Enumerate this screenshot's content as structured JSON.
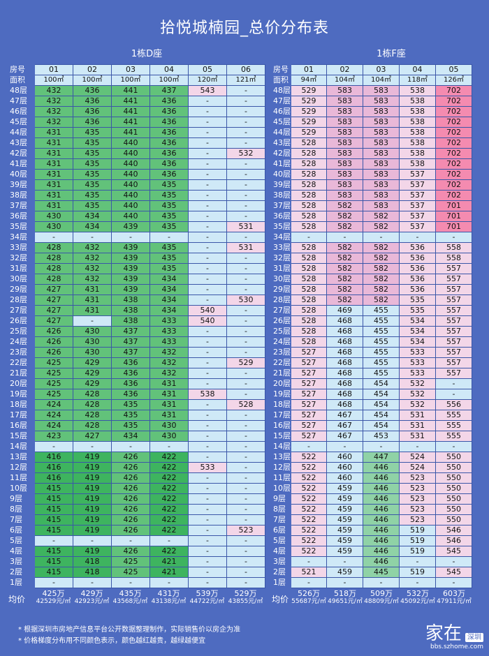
{
  "title": "拾悦城楠园_总价分布表",
  "labels": {
    "room": "房号",
    "area": "面积",
    "avg": "均价"
  },
  "colors": {
    "background": "#4e6bc0",
    "empty": "#cfe9f7",
    "green": "#3eb45f",
    "pink": "#f3d6e8",
    "hot_pink": "#f48bb0"
  },
  "footnotes": [
    "* 根据深圳市房地产信息平台公开数据整理制作，实际销售价以房企为准",
    "* 价格梯度分布用不同颜色表示，颜色越红越贵，越绿越便宜"
  ],
  "watermark": {
    "main": "家在",
    "tag": "深圳",
    "url": "bbs.szhome.com"
  },
  "floors": [
    "48层",
    "47层",
    "46层",
    "45层",
    "44层",
    "43层",
    "42层",
    "41层",
    "40层",
    "39层",
    "38层",
    "37层",
    "36层",
    "35层",
    "34层",
    "33层",
    "32层",
    "31层",
    "30层",
    "29层",
    "28层",
    "27层",
    "26层",
    "25层",
    "24层",
    "23层",
    "22层",
    "21层",
    "20层",
    "19层",
    "18层",
    "17层",
    "16层",
    "15层",
    "14层",
    "13层",
    "12层",
    "11层",
    "10层",
    "9层",
    "8层",
    "7层",
    "6层",
    "5层",
    "4层",
    "3层",
    "2层",
    "1层"
  ],
  "buildings": [
    {
      "name": "1栋D座",
      "units": [
        "01",
        "02",
        "03",
        "04",
        "05",
        "06"
      ],
      "areas": [
        "100㎡",
        "100㎡",
        "100㎡",
        "100㎡",
        "120㎡",
        "121㎡"
      ],
      "averages": [
        {
          "total": "425万",
          "unit": "42529元/㎡"
        },
        {
          "total": "429万",
          "unit": "42923元/㎡"
        },
        {
          "total": "435万",
          "unit": "43568元/㎡"
        },
        {
          "total": "431万",
          "unit": "43138元/㎡"
        },
        {
          "total": "539万",
          "unit": "44722元/㎡"
        },
        {
          "total": "529万",
          "unit": "43855元/㎡"
        }
      ],
      "rows": [
        [
          "432",
          "436",
          "441",
          "437",
          "543",
          "-"
        ],
        [
          "432",
          "436",
          "441",
          "436",
          "-",
          "-"
        ],
        [
          "432",
          "436",
          "441",
          "436",
          "-",
          "-"
        ],
        [
          "432",
          "436",
          "441",
          "436",
          "-",
          "-"
        ],
        [
          "431",
          "435",
          "441",
          "436",
          "-",
          "-"
        ],
        [
          "431",
          "435",
          "440",
          "436",
          "-",
          "-"
        ],
        [
          "431",
          "435",
          "440",
          "436",
          "-",
          "532"
        ],
        [
          "431",
          "435",
          "440",
          "436",
          "-",
          "-"
        ],
        [
          "431",
          "435",
          "440",
          "436",
          "-",
          "-"
        ],
        [
          "431",
          "435",
          "440",
          "435",
          "-",
          "-"
        ],
        [
          "431",
          "435",
          "440",
          "435",
          "-",
          "-"
        ],
        [
          "431",
          "435",
          "440",
          "435",
          "-",
          "-"
        ],
        [
          "430",
          "434",
          "440",
          "435",
          "-",
          "-"
        ],
        [
          "430",
          "434",
          "439",
          "435",
          "-",
          "531"
        ],
        [
          "-",
          "-",
          "-",
          "-",
          "-",
          "-"
        ],
        [
          "428",
          "432",
          "439",
          "435",
          "-",
          "531"
        ],
        [
          "428",
          "432",
          "439",
          "435",
          "-",
          "-"
        ],
        [
          "428",
          "432",
          "439",
          "435",
          "-",
          "-"
        ],
        [
          "428",
          "432",
          "439",
          "434",
          "-",
          "-"
        ],
        [
          "427",
          "431",
          "439",
          "434",
          "-",
          "-"
        ],
        [
          "427",
          "431",
          "438",
          "434",
          "-",
          "530"
        ],
        [
          "427",
          "431",
          "438",
          "434",
          "540",
          "-"
        ],
        [
          "427",
          "-",
          "438",
          "433",
          "540",
          "-"
        ],
        [
          "426",
          "430",
          "437",
          "433",
          "-",
          "-"
        ],
        [
          "426",
          "430",
          "437",
          "433",
          "-",
          "-"
        ],
        [
          "426",
          "430",
          "437",
          "432",
          "-",
          "-"
        ],
        [
          "425",
          "429",
          "436",
          "432",
          "-",
          "529"
        ],
        [
          "425",
          "429",
          "436",
          "432",
          "-",
          "-"
        ],
        [
          "425",
          "429",
          "436",
          "431",
          "-",
          "-"
        ],
        [
          "425",
          "428",
          "436",
          "431",
          "538",
          "-"
        ],
        [
          "424",
          "428",
          "435",
          "431",
          "-",
          "528"
        ],
        [
          "424",
          "428",
          "435",
          "431",
          "-",
          "-"
        ],
        [
          "424",
          "428",
          "435",
          "430",
          "-",
          "-"
        ],
        [
          "423",
          "427",
          "434",
          "430",
          "-",
          "-"
        ],
        [
          "-",
          "-",
          "-",
          "-",
          "-",
          "-"
        ],
        [
          "416",
          "419",
          "426",
          "422",
          "-",
          "-"
        ],
        [
          "416",
          "419",
          "426",
          "422",
          "533",
          "-"
        ],
        [
          "416",
          "419",
          "426",
          "422",
          "-",
          "-"
        ],
        [
          "415",
          "419",
          "426",
          "422",
          "-",
          "-"
        ],
        [
          "415",
          "419",
          "426",
          "422",
          "-",
          "-"
        ],
        [
          "415",
          "419",
          "426",
          "422",
          "-",
          "-"
        ],
        [
          "415",
          "419",
          "426",
          "422",
          "-",
          "-"
        ],
        [
          "415",
          "419",
          "426",
          "422",
          "-",
          "523"
        ],
        [
          "-",
          "-",
          "-",
          "-",
          "-",
          "-"
        ],
        [
          "415",
          "419",
          "426",
          "422",
          "-",
          "-"
        ],
        [
          "415",
          "418",
          "425",
          "421",
          "-",
          "-"
        ],
        [
          "415",
          "418",
          "425",
          "421",
          "-",
          "-"
        ],
        [
          "-",
          "-",
          "-",
          "-",
          "-",
          "-"
        ]
      ]
    },
    {
      "name": "1栋F座",
      "units": [
        "01",
        "02",
        "03",
        "04",
        "05"
      ],
      "areas": [
        "94㎡",
        "104㎡",
        "104㎡",
        "118㎡",
        "126㎡"
      ],
      "averages": [
        {
          "total": "526万",
          "unit": "55687元/㎡"
        },
        {
          "total": "518万",
          "unit": "49651元/㎡"
        },
        {
          "total": "509万",
          "unit": "48809元/㎡"
        },
        {
          "total": "532万",
          "unit": "45092元/㎡"
        },
        {
          "total": "603万",
          "unit": "47911元/㎡"
        }
      ],
      "rows": [
        [
          "529",
          "583",
          "583",
          "538",
          "702"
        ],
        [
          "529",
          "583",
          "583",
          "538",
          "702"
        ],
        [
          "529",
          "583",
          "583",
          "538",
          "702"
        ],
        [
          "529",
          "583",
          "583",
          "538",
          "702"
        ],
        [
          "529",
          "583",
          "583",
          "538",
          "702"
        ],
        [
          "528",
          "583",
          "583",
          "538",
          "702"
        ],
        [
          "528",
          "583",
          "583",
          "538",
          "702"
        ],
        [
          "528",
          "583",
          "583",
          "538",
          "702"
        ],
        [
          "528",
          "583",
          "583",
          "537",
          "702"
        ],
        [
          "528",
          "583",
          "583",
          "537",
          "702"
        ],
        [
          "528",
          "583",
          "583",
          "537",
          "702"
        ],
        [
          "528",
          "582",
          "583",
          "537",
          "701"
        ],
        [
          "528",
          "582",
          "582",
          "537",
          "701"
        ],
        [
          "528",
          "582",
          "582",
          "537",
          "701"
        ],
        [
          "-",
          "-",
          "-",
          "-",
          "-"
        ],
        [
          "528",
          "582",
          "582",
          "536",
          "558"
        ],
        [
          "528",
          "582",
          "582",
          "536",
          "558"
        ],
        [
          "528",
          "582",
          "582",
          "536",
          "557"
        ],
        [
          "528",
          "582",
          "582",
          "536",
          "557"
        ],
        [
          "528",
          "582",
          "582",
          "536",
          "557"
        ],
        [
          "528",
          "582",
          "582",
          "535",
          "557"
        ],
        [
          "528",
          "469",
          "455",
          "535",
          "557"
        ],
        [
          "528",
          "468",
          "455",
          "534",
          "557"
        ],
        [
          "528",
          "468",
          "455",
          "534",
          "557"
        ],
        [
          "528",
          "468",
          "455",
          "534",
          "557"
        ],
        [
          "527",
          "468",
          "455",
          "533",
          "557"
        ],
        [
          "527",
          "468",
          "455",
          "533",
          "557"
        ],
        [
          "527",
          "468",
          "455",
          "533",
          "557"
        ],
        [
          "527",
          "468",
          "454",
          "532",
          "-"
        ],
        [
          "527",
          "468",
          "454",
          "532",
          "-"
        ],
        [
          "527",
          "468",
          "454",
          "532",
          "556"
        ],
        [
          "527",
          "467",
          "454",
          "531",
          "555"
        ],
        [
          "527",
          "467",
          "454",
          "531",
          "555"
        ],
        [
          "527",
          "467",
          "453",
          "531",
          "555"
        ],
        [
          "-",
          "-",
          "-",
          "-",
          "-"
        ],
        [
          "522",
          "460",
          "447",
          "524",
          "550"
        ],
        [
          "522",
          "460",
          "446",
          "524",
          "550"
        ],
        [
          "522",
          "460",
          "446",
          "523",
          "550"
        ],
        [
          "522",
          "459",
          "446",
          "523",
          "550"
        ],
        [
          "522",
          "459",
          "446",
          "523",
          "550"
        ],
        [
          "522",
          "459",
          "446",
          "523",
          "550"
        ],
        [
          "522",
          "459",
          "446",
          "523",
          "550"
        ],
        [
          "522",
          "459",
          "446",
          "519",
          "546"
        ],
        [
          "522",
          "459",
          "446",
          "519",
          "546"
        ],
        [
          "522",
          "459",
          "446",
          "519",
          "545"
        ],
        [
          "-",
          "-",
          "446",
          "-",
          "-"
        ],
        [
          "521",
          "459",
          "445",
          "519",
          "545"
        ],
        [
          "-",
          "-",
          "-",
          "-",
          "-"
        ]
      ]
    }
  ]
}
